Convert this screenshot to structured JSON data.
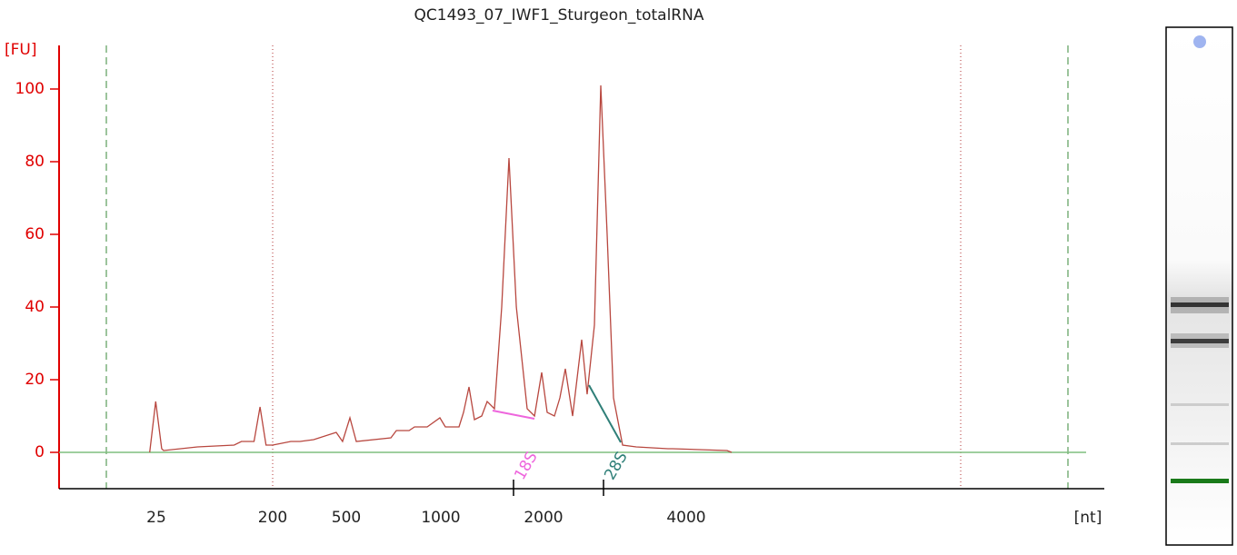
{
  "chart_data": {
    "type": "line",
    "title": "QC1493_07_IWF1_Sturgeon_totalRNA",
    "y_label": "[FU]",
    "x_label": "[nt]",
    "color": "#b8473f",
    "axis_color": "#e00000",
    "baseline_color": "#7fbf7f",
    "ylim": [
      -10,
      112
    ],
    "yticks": [
      0,
      20,
      40,
      60,
      80,
      100
    ],
    "xticks": [
      25,
      200,
      500,
      1000,
      2000,
      4000
    ],
    "x": [
      15,
      24,
      33,
      36,
      87,
      142,
      153,
      172,
      181,
      190,
      200,
      274,
      311,
      367,
      459,
      485,
      519,
      553,
      736,
      765,
      832,
      861,
      928,
      995,
      1044,
      1177,
      1221,
      1274,
      1327,
      1398,
      1451,
      1522,
      1593,
      1664,
      1735,
      1841,
      1912,
      1982,
      2051,
      2153,
      2229,
      2306,
      2408,
      2535,
      2612,
      2714,
      2803,
      2892,
      2981,
      3108,
      3299,
      3745,
      3809,
      4573,
      4637
    ],
    "values": [
      0,
      14,
      1,
      0.5,
      1.5,
      2,
      3,
      3,
      12.5,
      2,
      2,
      3,
      3,
      3.5,
      5.5,
      3,
      9.5,
      3,
      4,
      6,
      6,
      7,
      7,
      9.5,
      7,
      7,
      11,
      18,
      9,
      10,
      14,
      12,
      40,
      81,
      40,
      12,
      10,
      22,
      11,
      10,
      15,
      23,
      10,
      31,
      16,
      35,
      101,
      60,
      15,
      2,
      1.5,
      1,
      1,
      0.5,
      0
    ],
    "annotations": [
      {
        "label": "18S",
        "x": 1708,
        "color": "#ee66dd"
      },
      {
        "label": "28S",
        "x": 2841,
        "color": "#2f7f78"
      }
    ]
  }
}
